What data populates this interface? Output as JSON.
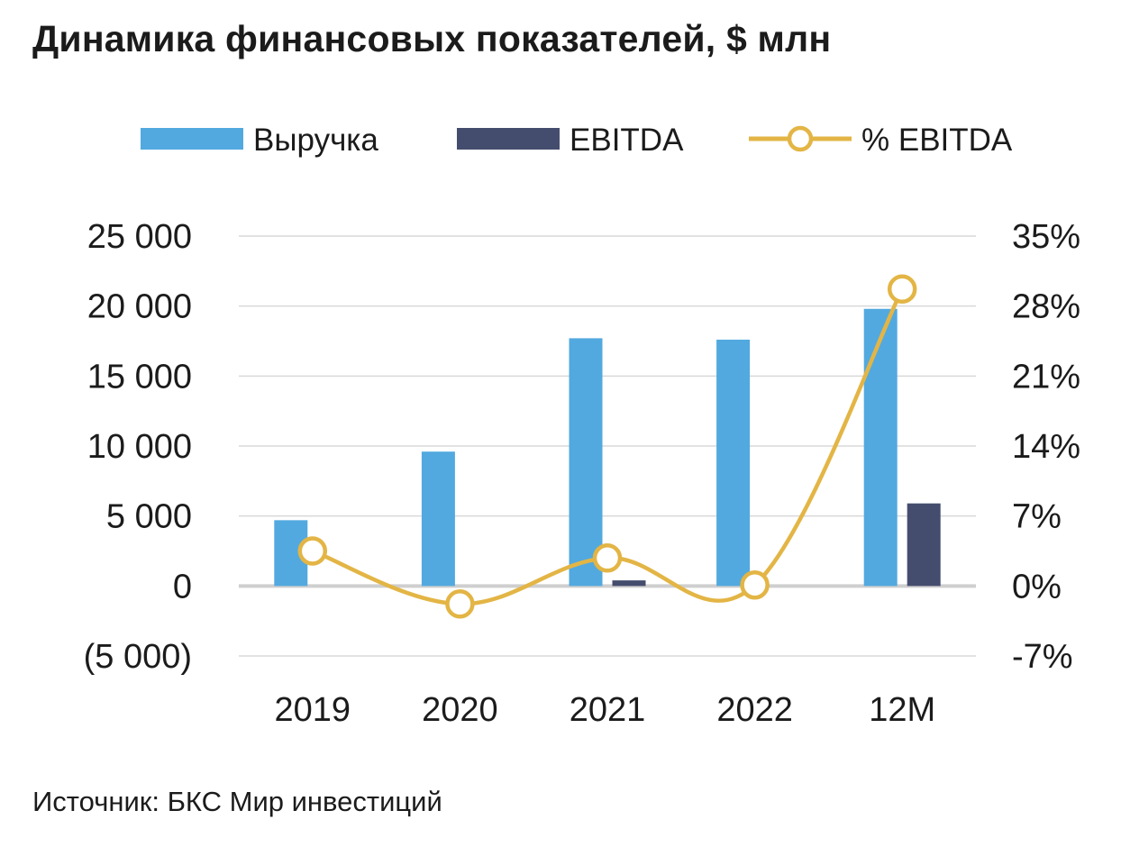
{
  "title": "Динамика финансовых показателей, $ млн",
  "source": "Источник: БКС Мир инвестиций",
  "colors": {
    "revenue": "#52a9df",
    "ebitda": "#454d6e",
    "ebitda_margin": "#e3b545",
    "grid": "#d9d9d9",
    "zero_line": "#cfcfcf"
  },
  "chart_data": {
    "type": "bar",
    "categories": [
      "2019",
      "2020",
      "2021",
      "2022",
      "12M"
    ],
    "series": [
      {
        "name": "Выручка",
        "type": "bar",
        "axis": "left",
        "values": [
          4700,
          9600,
          17700,
          17600,
          19800
        ]
      },
      {
        "name": "EBITDA",
        "type": "bar",
        "axis": "left",
        "values": [
          0,
          0,
          400,
          0,
          5900
        ]
      },
      {
        "name": "% EBITDA",
        "type": "line",
        "axis": "right",
        "smooth": true,
        "marker": "circle",
        "values": [
          3.5,
          -1.8,
          2.8,
          0.1,
          29.7
        ]
      }
    ],
    "y_left": {
      "min": -5000,
      "max": 25000,
      "ticks": [
        "(5 000)",
        "0",
        "5 000",
        "10 000",
        "15 000",
        "20 000",
        "25 000"
      ],
      "tick_values": [
        -5000,
        0,
        5000,
        10000,
        15000,
        20000,
        25000
      ]
    },
    "y_right": {
      "min": -7,
      "max": 35,
      "ticks": [
        "-7%",
        "0%",
        "7%",
        "14%",
        "21%",
        "28%",
        "35%"
      ],
      "tick_values": [
        -7,
        0,
        7,
        14,
        21,
        28,
        35
      ]
    },
    "legend": {
      "position": "top",
      "entries": [
        "Выручка",
        "EBITDA",
        "% EBITDA"
      ]
    },
    "grid": true
  }
}
